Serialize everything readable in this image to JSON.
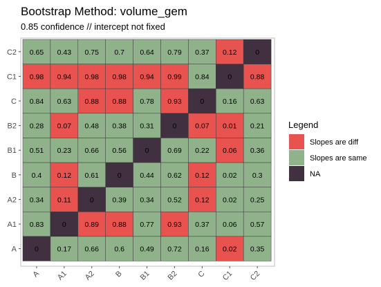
{
  "chart_data": {
    "type": "heatmap",
    "title": "Bootstrap Method: volume_gem",
    "subtitle": "0.85 confidence // intercept not fixed",
    "x_categories": [
      "A",
      "A1",
      "A2",
      "B",
      "B1",
      "B2",
      "C",
      "C1",
      "C2"
    ],
    "y_categories": [
      "A",
      "A1",
      "A2",
      "B",
      "B1",
      "B2",
      "C",
      "C1",
      "C2"
    ],
    "values": [
      [
        0,
        0.17,
        0.66,
        0.6,
        0.49,
        0.72,
        0.16,
        0.02,
        0.35
      ],
      [
        0.83,
        0,
        0.89,
        0.88,
        0.77,
        0.93,
        0.37,
        0.06,
        0.57
      ],
      [
        0.34,
        0.11,
        0,
        0.39,
        0.34,
        0.52,
        0.12,
        0.02,
        0.25
      ],
      [
        0.4,
        0.12,
        0.61,
        0,
        0.44,
        0.62,
        0.12,
        0.02,
        0.3
      ],
      [
        0.51,
        0.23,
        0.66,
        0.56,
        0,
        0.69,
        0.22,
        0.06,
        0.36
      ],
      [
        0.28,
        0.07,
        0.48,
        0.38,
        0.31,
        0,
        0.07,
        0.01,
        0.21
      ],
      [
        0.84,
        0.63,
        0.88,
        0.88,
        0.78,
        0.93,
        0,
        0.16,
        0.63
      ],
      [
        0.98,
        0.94,
        0.98,
        0.98,
        0.94,
        0.99,
        0.84,
        0,
        0.88
      ],
      [
        0.65,
        0.43,
        0.75,
        0.7,
        0.64,
        0.79,
        0.37,
        0.12,
        0
      ]
    ],
    "categories_matrix": [
      [
        "na",
        "same",
        "same",
        "same",
        "same",
        "same",
        "same",
        "diff",
        "same"
      ],
      [
        "same",
        "na",
        "diff",
        "diff",
        "same",
        "diff",
        "same",
        "same",
        "same"
      ],
      [
        "same",
        "diff",
        "na",
        "same",
        "same",
        "same",
        "diff",
        "same",
        "same"
      ],
      [
        "same",
        "diff",
        "same",
        "na",
        "same",
        "same",
        "diff",
        "same",
        "same"
      ],
      [
        "same",
        "same",
        "same",
        "same",
        "na",
        "same",
        "same",
        "diff",
        "same"
      ],
      [
        "same",
        "diff",
        "same",
        "same",
        "same",
        "na",
        "diff",
        "diff",
        "same"
      ],
      [
        "same",
        "same",
        "diff",
        "diff",
        "same",
        "diff",
        "na",
        "same",
        "same"
      ],
      [
        "diff",
        "diff",
        "diff",
        "diff",
        "diff",
        "diff",
        "same",
        "na",
        "diff"
      ],
      [
        "same",
        "same",
        "same",
        "same",
        "same",
        "same",
        "same",
        "diff",
        "na"
      ]
    ],
    "legend": {
      "title": "Legend",
      "position": "right",
      "entries": [
        {
          "key": "diff",
          "label": "Slopes are diff",
          "color": "#e8534f"
        },
        {
          "key": "same",
          "label": "Slopes are same",
          "color": "#8fb28a"
        },
        {
          "key": "na",
          "label": "NA",
          "color": "#41303f"
        }
      ]
    },
    "grid": true
  },
  "colors": {
    "diff": "#e8534f",
    "same": "#8fb28a",
    "na": "#41303f",
    "panel_grid": "#ebebeb"
  }
}
